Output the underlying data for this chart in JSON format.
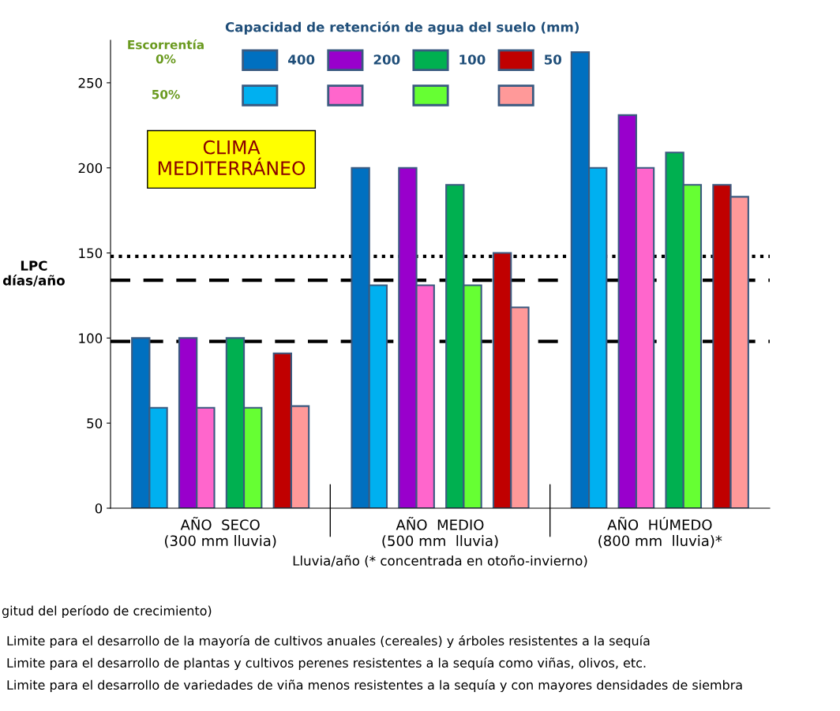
{
  "chart_data": {
    "type": "bar",
    "categories": [
      "AÑO  SECO\n(300 mm lluvia)",
      "AÑO  MEDIO\n(500 mm  lluvia)",
      "AÑO  HÚMEDO\n(800 mm  lluvia)*"
    ],
    "xlabel": "Lluvia/año (* concentrada en otoño-invierno)",
    "ylabel": "LPC\ndías/año",
    "legend_title": "Capacidad de retención de agua del suelo (mm)",
    "legend": "top left",
    "series": [
      {
        "name": "400",
        "color": "#0070c0",
        "values": [
          100,
          200,
          268
        ]
      },
      {
        "name": "200",
        "color": "#9900cc",
        "values": [
          100,
          200,
          231
        ]
      },
      {
        "name": "100",
        "color": "#00b050",
        "values": [
          100,
          190,
          209
        ]
      },
      {
        "name": "50",
        "color": "#c00000",
        "values": [
          91,
          150,
          190
        ]
      },
      {
        "color": "#00b0f0",
        "values": [
          59,
          131,
          200
        ]
      },
      {
        "color": "#ff66cc",
        "values": [
          59,
          131,
          200
        ]
      },
      {
        "color": "#66ff33",
        "values": [
          59,
          131,
          190
        ]
      },
      {
        "color": "#ff9999",
        "values": [
          60,
          118,
          183
        ]
      }
    ],
    "ylim": [
      0,
      275
    ],
    "yticks": [
      0,
      50,
      100,
      150,
      200,
      250
    ],
    "ref_lines": [
      {
        "axis": "y",
        "value": 148,
        "line_style": "dotted",
        "color": "#000000"
      },
      {
        "axis": "y",
        "value": 134,
        "line_style": "dashed",
        "color": "#000000"
      },
      {
        "axis": "y",
        "value": 98,
        "line_style": "dashed",
        "color": "#000000"
      }
    ],
    "annotations": [
      "CLIMA\nMEDITERRÁNEO",
      "Escorrentía",
      "0%",
      "50%",
      "gitud del período de crecimiento)",
      "Limite para el desarrollo de la mayoría de cultivos anuales (cereales) y árboles resistentes a la sequía",
      "Limite para el desarrollo de plantas y cultivos perenes resistentes a la sequía como viñas, olivos, etc.",
      "Limite para el desarrollo de variedades de viña menos resistentes a la sequía y con mayores densidades de siembra"
    ]
  }
}
